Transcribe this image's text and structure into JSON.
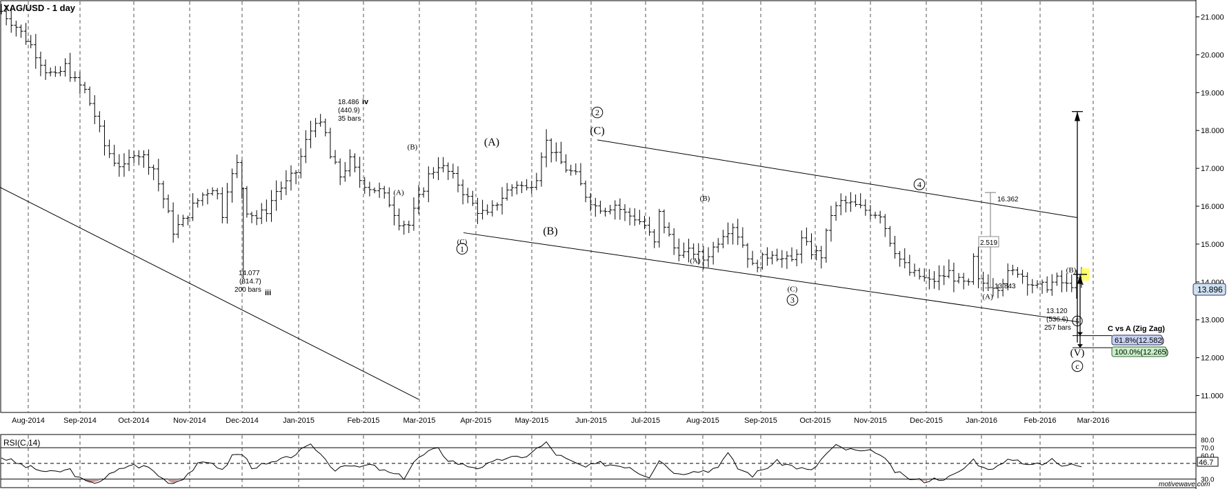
{
  "window": {
    "symbol_title": "XAG/USD - 1 day",
    "watermark": "motivewave.com"
  },
  "colors": {
    "background": "#ffffff",
    "bars": "#000000",
    "grid": "#555555",
    "rsi_oversold_fill": "#c49a9a",
    "price_badge_bg": "#cfe0f0",
    "fib_618_bg": "#c8d2f0",
    "fib_100_bg": "#c8f0c8",
    "current_marker": "#ffff66"
  },
  "chart_data": [
    {
      "type": "ohlc",
      "title": "XAG/USD - 1 day",
      "x_tick_labels": [
        "Aug-2014",
        "Sep-2014",
        "Oct-2014",
        "Nov-2014",
        "Dec-2014",
        "Jan-2015",
        "Feb-2015",
        "Mar-2015",
        "Apr-2015",
        "May-2015",
        "Jun-2015",
        "Jul-2015",
        "Aug-2015",
        "Sep-2015",
        "Oct-2015",
        "Nov-2015",
        "Dec-2015",
        "Jan-2016",
        "Feb-2016",
        "Mar-2016"
      ],
      "y_tick_labels": [
        "21.000",
        "20.000",
        "19.000",
        "18.000",
        "17.000",
        "16.000",
        "15.000",
        "14.000",
        "13.000",
        "12.000",
        "11.000"
      ],
      "ylim": [
        10.7,
        21.3
      ],
      "grid": "vertical dashed",
      "current_price_label": "13.896",
      "current_price": 13.896,
      "close_path": [
        [
          0,
          21.15
        ],
        [
          3,
          20.75
        ],
        [
          6,
          20.25
        ],
        [
          9,
          19.6
        ],
        [
          11,
          19.4
        ],
        [
          13,
          19.7
        ],
        [
          15,
          19.3
        ],
        [
          17,
          19.05
        ],
        [
          19,
          18.4
        ],
        [
          21,
          17.6
        ],
        [
          23,
          17.2
        ],
        [
          25,
          17.0
        ],
        [
          27,
          17.45
        ],
        [
          29,
          17.3
        ],
        [
          31,
          17.0
        ],
        [
          33,
          16.2
        ],
        [
          35,
          15.35
        ],
        [
          37,
          15.6
        ],
        [
          39,
          16.0
        ],
        [
          41,
          16.3
        ],
        [
          43,
          16.5
        ],
        [
          44,
          16.3
        ],
        [
          45,
          15.8
        ],
        [
          46,
          16.5
        ],
        [
          48,
          17.1
        ],
        [
          50,
          15.9
        ],
        [
          52,
          15.7
        ],
        [
          54,
          15.9
        ],
        [
          56,
          16.4
        ],
        [
          58,
          16.6
        ],
        [
          60,
          16.9
        ],
        [
          62,
          17.7
        ],
        [
          64,
          18.3
        ],
        [
          66,
          17.9
        ],
        [
          67,
          17.3
        ],
        [
          69,
          16.8
        ],
        [
          71,
          17.2
        ],
        [
          73,
          16.7
        ],
        [
          75,
          16.5
        ],
        [
          77,
          16.4
        ],
        [
          79,
          16.1
        ],
        [
          81,
          15.6
        ],
        [
          83,
          15.5
        ],
        [
          85,
          16.2
        ],
        [
          87,
          16.8
        ],
        [
          89,
          17.1
        ],
        [
          91,
          16.9
        ],
        [
          93,
          16.6
        ],
        [
          95,
          16.2
        ],
        [
          97,
          15.9
        ],
        [
          99,
          15.75
        ],
        [
          101,
          16.1
        ],
        [
          103,
          16.4
        ],
        [
          105,
          16.6
        ],
        [
          107,
          16.45
        ],
        [
          109,
          16.8
        ],
        [
          110,
          17.4
        ],
        [
          111,
          17.7
        ],
        [
          113,
          17.3
        ],
        [
          115,
          17.0
        ],
        [
          117,
          16.8
        ],
        [
          119,
          16.3
        ],
        [
          121,
          16.0
        ],
        [
          123,
          15.95
        ],
        [
          125,
          16.05
        ],
        [
          127,
          15.8
        ],
        [
          129,
          15.7
        ],
        [
          131,
          15.5
        ],
        [
          133,
          15.0
        ],
        [
          134,
          15.8
        ],
        [
          135,
          15.5
        ],
        [
          137,
          14.9
        ],
        [
          139,
          14.75
        ],
        [
          141,
          14.8
        ],
        [
          143,
          14.6
        ],
        [
          145,
          14.9
        ],
        [
          147,
          15.3
        ],
        [
          149,
          15.5
        ],
        [
          151,
          15.0
        ],
        [
          153,
          14.4
        ],
        [
          155,
          14.6
        ],
        [
          157,
          14.8
        ],
        [
          159,
          14.6
        ],
        [
          161,
          14.55
        ],
        [
          163,
          15.1
        ],
        [
          165,
          14.8
        ],
        [
          167,
          14.7
        ],
        [
          169,
          15.8
        ],
        [
          171,
          16.1
        ],
        [
          173,
          16.05
        ],
        [
          175,
          15.95
        ],
        [
          177,
          15.85
        ],
        [
          179,
          15.8
        ],
        [
          181,
          15.1
        ],
        [
          183,
          14.6
        ],
        [
          185,
          14.25
        ],
        [
          187,
          14.15
        ],
        [
          189,
          14.0
        ],
        [
          191,
          14.1
        ],
        [
          193,
          14.25
        ],
        [
          195,
          14.0
        ],
        [
          197,
          13.9
        ],
        [
          198,
          14.6
        ],
        [
          199,
          14.0
        ],
        [
          201,
          13.95
        ],
        [
          203,
          13.9
        ],
        [
          205,
          14.2
        ],
        [
          207,
          14.3
        ],
        [
          209,
          14.05
        ],
        [
          211,
          13.85
        ],
        [
          213,
          13.9
        ],
        [
          215,
          14.05
        ],
        [
          217,
          13.9
        ],
        [
          219,
          14.0
        ],
        [
          220,
          13.896
        ]
      ],
      "annotations": {
        "low_label": {
          "price": "14.077",
          "points": "(814.7)",
          "bars": "200 bars",
          "wave": "iii"
        },
        "high_label": {
          "price": "18.486",
          "points": "(440.9)",
          "bars": "35 bars",
          "wave": "iv"
        },
        "low2_label": {
          "price": "13.120",
          "points": "(536.6)",
          "bars": "257 bars"
        },
        "measure_top": "16.362",
        "measure_mid": "2.519",
        "measure_bottom": "13.843",
        "fib_title": "C vs A (Zig Zag)",
        "fib_618": "61.8%(12.582)",
        "fib_100": "100.0%(12.265)",
        "fib_618_value": 12.582,
        "fib_100_value": 12.265,
        "waves": {
          "B1": "(B)",
          "A1": "(A)",
          "A_big": "(A)",
          "B_big": "(B)",
          "C_big": "(C)",
          "two": "2",
          "C1": "(C)",
          "one": "1",
          "B2": "(B)",
          "A2": "(A)",
          "C2": "(C)",
          "three": "3",
          "four": "4",
          "A3": "(A)",
          "B3": "(B)",
          "five": "5",
          "V_big": "(V)",
          "c_small": "c"
        }
      }
    },
    {
      "type": "line",
      "title": "RSI(C,14)",
      "y_tick_labels": [
        "80.0",
        "70.0",
        "60.0",
        "46.7",
        "30.0"
      ],
      "ylim": [
        20,
        85
      ],
      "levels": [
        70,
        50,
        30
      ],
      "current_value_label": "46.7",
      "current_value": 46.7,
      "values": [
        [
          0,
          58
        ],
        [
          5,
          46
        ],
        [
          10,
          38
        ],
        [
          14,
          42
        ],
        [
          16,
          30
        ],
        [
          18,
          25
        ],
        [
          20,
          28
        ],
        [
          22,
          35
        ],
        [
          26,
          48
        ],
        [
          30,
          45
        ],
        [
          33,
          30
        ],
        [
          35,
          25
        ],
        [
          37,
          32
        ],
        [
          40,
          48
        ],
        [
          43,
          52
        ],
        [
          45,
          40
        ],
        [
          47,
          60
        ],
        [
          49,
          62
        ],
        [
          51,
          46
        ],
        [
          54,
          48
        ],
        [
          58,
          56
        ],
        [
          61,
          66
        ],
        [
          63,
          72
        ],
        [
          64,
          69
        ],
        [
          66,
          55
        ],
        [
          68,
          42
        ],
        [
          70,
          50
        ],
        [
          72,
          44
        ],
        [
          75,
          48
        ],
        [
          78,
          40
        ],
        [
          80,
          36
        ],
        [
          82,
          32
        ],
        [
          84,
          52
        ],
        [
          87,
          65
        ],
        [
          89,
          68
        ],
        [
          91,
          55
        ],
        [
          94,
          48
        ],
        [
          97,
          45
        ],
        [
          100,
          50
        ],
        [
          103,
          58
        ],
        [
          106,
          56
        ],
        [
          108,
          65
        ],
        [
          110,
          72
        ],
        [
          111,
          76
        ],
        [
          113,
          62
        ],
        [
          116,
          52
        ],
        [
          119,
          45
        ],
        [
          122,
          50
        ],
        [
          125,
          48
        ],
        [
          128,
          46
        ],
        [
          130,
          38
        ],
        [
          132,
          34
        ],
        [
          134,
          55
        ],
        [
          136,
          44
        ],
        [
          138,
          36
        ],
        [
          141,
          42
        ],
        [
          144,
          40
        ],
        [
          146,
          48
        ],
        [
          148,
          62
        ],
        [
          150,
          44
        ],
        [
          153,
          35
        ],
        [
          155,
          42
        ],
        [
          158,
          52
        ],
        [
          162,
          45
        ],
        [
          165,
          40
        ],
        [
          168,
          62
        ],
        [
          170,
          72
        ],
        [
          172,
          68
        ],
        [
          174,
          66
        ],
        [
          176,
          64
        ],
        [
          178,
          66
        ],
        [
          180,
          54
        ],
        [
          182,
          40
        ],
        [
          184,
          33
        ],
        [
          186,
          29
        ],
        [
          188,
          28
        ],
        [
          190,
          30
        ],
        [
          193,
          32
        ],
        [
          195,
          38
        ],
        [
          198,
          55
        ],
        [
          200,
          44
        ],
        [
          203,
          46
        ],
        [
          206,
          56
        ],
        [
          209,
          50
        ],
        [
          212,
          48
        ],
        [
          214,
          55
        ],
        [
          216,
          48
        ],
        [
          218,
          52
        ],
        [
          220,
          46.7
        ]
      ]
    }
  ]
}
